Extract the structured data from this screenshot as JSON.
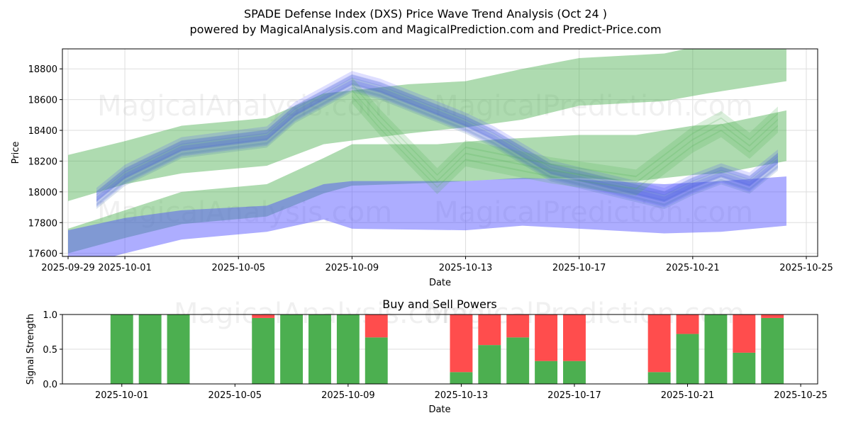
{
  "header": {
    "title": "SPADE Defense Index (DXS) Price Wave Trend Analysis (Oct 24 )",
    "subtitle": "powered by MagicalAnalysis.com and MagicalPrediction.com and Predict-Price.com"
  },
  "watermarks": [
    "MagicalAnalysis.com",
    "MagicalPrediction.com"
  ],
  "colors": {
    "green_band": "#4caf50",
    "blue_band": "#4a4aff",
    "buy": "#4caf50",
    "sell": "#ff4d4d",
    "grid": "#dddddd"
  },
  "chart_data": [
    {
      "type": "area",
      "title": "",
      "xlabel": "Date",
      "ylabel": "Price",
      "x_start": "2025-09-29",
      "xlim_days": [
        -0.2,
        26.4
      ],
      "ylim": [
        17580,
        18930
      ],
      "grid": true,
      "x_ticks": [
        "2025-09-29",
        "2025-10-01",
        "2025-10-05",
        "2025-10-09",
        "2025-10-13",
        "2025-10-17",
        "2025-10-21",
        "2025-10-25"
      ],
      "x_tick_days": [
        0,
        2,
        6,
        10,
        14,
        18,
        22,
        26
      ],
      "y_ticks": [
        17600,
        17800,
        18000,
        18200,
        18400,
        18600,
        18800
      ],
      "bands": [
        {
          "name": "upper-green-band",
          "color": "green",
          "days": [
            0,
            2,
            4,
            7,
            9,
            12,
            14,
            16,
            18,
            21,
            22.5,
            25.3
          ],
          "upper": [
            18240,
            18330,
            18430,
            18480,
            18640,
            18700,
            18720,
            18800,
            18870,
            18900,
            18960,
            18980
          ],
          "lower": [
            17940,
            18050,
            18120,
            18170,
            18310,
            18380,
            18420,
            18470,
            18560,
            18590,
            18640,
            18720
          ]
        },
        {
          "name": "lower-green-band",
          "color": "green",
          "days": [
            0,
            2,
            4,
            7,
            9,
            10,
            13,
            15,
            18,
            20,
            22,
            23,
            25.3
          ],
          "upper": [
            17760,
            17880,
            18000,
            18050,
            18220,
            18310,
            18310,
            18340,
            18370,
            18370,
            18430,
            18440,
            18530
          ],
          "lower": [
            17600,
            17700,
            17790,
            17840,
            17990,
            18040,
            18060,
            18080,
            18090,
            18070,
            18110,
            18120,
            18200
          ]
        },
        {
          "name": "lower-blue-band",
          "color": "blue",
          "days": [
            0,
            2,
            4,
            7,
            9,
            10,
            14,
            16,
            18,
            21,
            23,
            25.3
          ],
          "upper": [
            17750,
            17830,
            17880,
            17910,
            18050,
            18070,
            18070,
            18090,
            18080,
            18050,
            18070,
            18100
          ],
          "lower": [
            17500,
            17600,
            17690,
            17740,
            17820,
            17760,
            17750,
            17780,
            17760,
            17730,
            17740,
            17780
          ]
        }
      ],
      "wave": {
        "name": "price-wave-strands",
        "days": [
          1,
          2,
          4,
          7,
          8,
          10,
          11,
          14,
          15,
          17,
          19,
          21,
          22,
          23,
          24,
          25
        ],
        "center": [
          17960,
          18110,
          18290,
          18360,
          18520,
          18720,
          18670,
          18450,
          18360,
          18140,
          18050,
          17960,
          18050,
          18120,
          18060,
          18210
        ],
        "strand_offsets": [
          -90,
          -60,
          -35,
          -15,
          0,
          20,
          45,
          70
        ],
        "green_strand_days": [
          10,
          11,
          13,
          14,
          17,
          20,
          22,
          23,
          24,
          25
        ],
        "green_strand_center": [
          18640,
          18430,
          18050,
          18230,
          18120,
          18040,
          18320,
          18420,
          18280,
          18450
        ]
      }
    },
    {
      "type": "bar",
      "title": "Buy and Sell Powers",
      "xlabel": "Date",
      "ylabel": "Signal Strength",
      "x_start": "2025-09-29",
      "xlim_days": [
        -0.1,
        26.6
      ],
      "ylim": [
        0,
        1
      ],
      "y_ticks": [
        "0.0",
        "0.5",
        "1.0"
      ],
      "y_tick_values": [
        0,
        0.5,
        1
      ],
      "x_ticks": [
        "2025-10-01",
        "2025-10-05",
        "2025-10-09",
        "2025-10-13",
        "2025-10-17",
        "2025-10-21",
        "2025-10-25"
      ],
      "x_tick_days": [
        2,
        6,
        10,
        14,
        18,
        22,
        26
      ],
      "categories": [
        "2025-10-01",
        "2025-10-02",
        "2025-10-03",
        "2025-10-06",
        "2025-10-07",
        "2025-10-08",
        "2025-10-09",
        "2025-10-10",
        "2025-10-13",
        "2025-10-14",
        "2025-10-15",
        "2025-10-16",
        "2025-10-17",
        "2025-10-20",
        "2025-10-21",
        "2025-10-22",
        "2025-10-23",
        "2025-10-24"
      ],
      "category_days": [
        2,
        3,
        4,
        7,
        8,
        9,
        10,
        11,
        14,
        15,
        16,
        17,
        18,
        21,
        22,
        23,
        24,
        25
      ],
      "series": [
        {
          "name": "Buy",
          "values": [
            1.0,
            1.0,
            1.0,
            0.95,
            1.0,
            1.0,
            1.0,
            0.67,
            0.17,
            0.56,
            0.67,
            0.33,
            0.33,
            0.17,
            0.72,
            1.0,
            0.45,
            0.95
          ]
        },
        {
          "name": "Sell",
          "values": [
            0.0,
            0.0,
            0.0,
            0.05,
            0.0,
            0.0,
            0.0,
            0.33,
            0.83,
            0.44,
            0.33,
            0.67,
            0.67,
            0.83,
            0.28,
            0.0,
            0.55,
            0.05
          ]
        }
      ],
      "grid": true
    }
  ]
}
